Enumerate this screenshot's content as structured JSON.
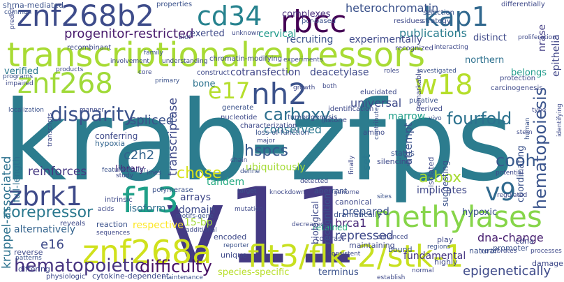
{
  "words": [
    {
      "text": "krab-zfps",
      "color": "#2c7c8e"
    },
    {
      "text": "v11",
      "color": "#443a83"
    },
    {
      "text": "transcriptionalrepressors",
      "color": "#a8db34"
    },
    {
      "text": "znf268b2",
      "color": "#3e4c8a"
    },
    {
      "text": "cd34",
      "color": "#26828e"
    },
    {
      "text": "rbcc",
      "color": "#440154"
    },
    {
      "text": "kap1",
      "color": "#31688e"
    },
    {
      "text": "znf268",
      "color": "#a0da39"
    },
    {
      "text": "nh2",
      "color": "#3b528b"
    },
    {
      "text": "w18",
      "color": "#b5de2b"
    },
    {
      "text": "e17",
      "color": "#b5de2b"
    },
    {
      "text": "flt3/flk-2/stk-1",
      "color": "#c8e020"
    },
    {
      "text": "znf268a",
      "color": "#d0e11c"
    },
    {
      "text": "methylases",
      "color": "#86d549"
    },
    {
      "text": "f13",
      "color": "#1fa088"
    },
    {
      "text": "zbrk1",
      "color": "#3e4a89"
    },
    {
      "text": "v9",
      "color": "#30698e"
    },
    {
      "text": "hematopoiesis",
      "color": "#3a548c"
    },
    {
      "text": "disparity",
      "color": "#3b528b"
    },
    {
      "text": "fourfold",
      "color": "#2c728e"
    },
    {
      "text": "carboxy",
      "color": "#2d708e"
    },
    {
      "text": "hspcs",
      "color": "#38598c"
    },
    {
      "text": "chose",
      "color": "#d8e219"
    },
    {
      "text": "corepressor",
      "color": "#2a788e"
    },
    {
      "text": "hematopoietic",
      "color": "#46337f"
    },
    {
      "text": "difficulty",
      "color": "#471063"
    },
    {
      "text": "cooh",
      "color": "#38598c"
    },
    {
      "text": "a-box",
      "color": "#a8db34"
    },
    {
      "text": "methylases",
      "color": "#86d549"
    },
    {
      "text": "progenitor-restricted",
      "color": "#481a6c"
    },
    {
      "text": "heterochromatin",
      "color": "#3b528b"
    },
    {
      "text": "publications",
      "color": "#287c8e"
    },
    {
      "text": "transcriptase",
      "color": "#3e4a89"
    },
    {
      "text": "kruppel-associated",
      "color": "#2c718e"
    },
    {
      "text": "reinforces",
      "color": "#453781"
    },
    {
      "text": "spliced",
      "color": "#3b528b"
    },
    {
      "text": "conserved",
      "color": "#2a778e"
    },
    {
      "text": "library",
      "color": "#482878"
    },
    {
      "text": "c2h2",
      "color": "#33638d"
    },
    {
      "text": "tandem",
      "color": "#25ab82"
    },
    {
      "text": "ubiquitously",
      "color": "#a5db36"
    },
    {
      "text": "universal",
      "color": "#3e4989"
    },
    {
      "text": "marrow",
      "color": "#1f9e89"
    },
    {
      "text": "attempt",
      "color": "#3b528b"
    },
    {
      "text": "epithelia",
      "color": "#404688"
    },
    {
      "text": "nrase",
      "color": "#433e85"
    },
    {
      "text": "cotransfection",
      "color": "#404688"
    },
    {
      "text": "deacetylase",
      "color": "#3e4989"
    },
    {
      "text": "prepared",
      "color": "#3b528b"
    },
    {
      "text": "implicates",
      "color": "#3f4788"
    },
    {
      "text": "repressed",
      "color": "#3e4989"
    },
    {
      "text": "dna-change",
      "color": "#481f70"
    },
    {
      "text": "brca1",
      "color": "#482878"
    },
    {
      "text": "retained",
      "color": "#29af7f"
    },
    {
      "text": "alternatively",
      "color": "#33638d"
    },
    {
      "text": "respective",
      "color": "#fde725"
    },
    {
      "text": "15-bp",
      "color": "#a2da37"
    },
    {
      "text": "e16",
      "color": "#3e4a89"
    },
    {
      "text": "full-length",
      "color": "#2d708e"
    },
    {
      "text": "isoform",
      "color": "#2e6e8e"
    },
    {
      "text": "domain",
      "color": "#3e4c8a"
    },
    {
      "text": "arrays",
      "color": "#3f4889"
    },
    {
      "text": "epigenetically",
      "color": "#3e4a89"
    },
    {
      "text": "fundamental",
      "color": "#453581"
    },
    {
      "text": "terminus",
      "color": "#3b528b"
    },
    {
      "text": "species-specific",
      "color": "#b8de29"
    },
    {
      "text": "recognition",
      "color": "#3b528b"
    },
    {
      "text": "biological",
      "color": "#3e4989"
    },
    {
      "text": "hypoxic",
      "color": "#3b528b"
    },
    {
      "text": "coordinating",
      "color": "#3b528b"
    },
    {
      "text": "set",
      "color": "#2a788e"
    },
    {
      "text": "belongs",
      "color": "#1e9b8a"
    },
    {
      "text": "carcinogenesis",
      "color": "#3e4a89"
    },
    {
      "text": "northern",
      "color": "#2d708e"
    },
    {
      "text": "recruiting",
      "color": "#3b528b"
    },
    {
      "text": "complexes",
      "color": "#472d7b"
    },
    {
      "text": "cervical",
      "color": "#1f9a8a"
    },
    {
      "text": "exerted",
      "color": "#3e4989"
    },
    {
      "text": "experimentally",
      "color": "#3e4989"
    },
    {
      "text": "bone",
      "color": "#2c728e"
    },
    {
      "text": "verified",
      "color": "#2a788e"
    },
    {
      "text": "conferring",
      "color": "#3e4989"
    },
    {
      "text": "hypoxia",
      "color": "#32648e"
    },
    {
      "text": "shrna-mediated",
      "color": "#3b528b"
    },
    {
      "text": "chromatin-modifying",
      "color": "#3e4989"
    },
    {
      "text": "pcr-based",
      "color": "#3b528b"
    },
    {
      "text": "residues",
      "color": "#3e4989"
    },
    {
      "text": "strategy",
      "color": "#3b528b"
    },
    {
      "text": "selection",
      "color": "#3b528b"
    },
    {
      "text": "recognized",
      "color": "#404688"
    },
    {
      "text": "recombinant",
      "color": "#3e4989"
    },
    {
      "text": "properties",
      "color": "#3b528b"
    },
    {
      "text": "differentially",
      "color": "#3e4989"
    },
    {
      "text": "distinct",
      "color": "#3e4989"
    },
    {
      "text": "proliferation",
      "color": "#3e4989"
    },
    {
      "text": "protection",
      "color": "#3e4989"
    },
    {
      "text": "putative",
      "color": "#3b528b"
    },
    {
      "text": "derived",
      "color": "#3e4989"
    },
    {
      "text": "elucidated",
      "color": "#3e4989"
    },
    {
      "text": "contrast",
      "color": "#3e4989"
    },
    {
      "text": "tumorigenesis",
      "color": "#3b528b"
    },
    {
      "text": "characterization",
      "color": "#3e4989"
    },
    {
      "text": "nucleotide",
      "color": "#3e4989"
    },
    {
      "text": "generate",
      "color": "#3b528b"
    },
    {
      "text": "histone",
      "color": "#3e4989"
    },
    {
      "text": "identification",
      "color": "#3e4989"
    },
    {
      "text": "experiments",
      "color": "#3e4989"
    },
    {
      "text": "loss-of-function",
      "color": "#3b528b"
    },
    {
      "text": "amino",
      "color": "#3e4989"
    },
    {
      "text": "status",
      "color": "#3b528b"
    },
    {
      "text": "silencing",
      "color": "#3e4989"
    },
    {
      "text": "isolated",
      "color": "#3e4989"
    },
    {
      "text": "suggesting",
      "color": "#3b528b"
    },
    {
      "text": "potential",
      "color": "#3e4989"
    },
    {
      "text": "regulated",
      "color": "#3e4989"
    },
    {
      "text": "aberrant",
      "color": "#3b528b"
    },
    {
      "text": "canonical",
      "color": "#3e4989"
    },
    {
      "text": "genome",
      "color": "#3e4989"
    },
    {
      "text": "dramatically",
      "color": "#3b528b"
    },
    {
      "text": "maintaining",
      "color": "#3e4989"
    },
    {
      "text": "enhanced",
      "color": "#3e4989"
    },
    {
      "text": "regions",
      "color": "#3b528b"
    },
    {
      "text": "vertebrates",
      "color": "#3e4989"
    },
    {
      "text": "play",
      "color": "#3e4989"
    },
    {
      "text": "natural",
      "color": "#3b528b"
    },
    {
      "text": "highly",
      "color": "#3e4989"
    },
    {
      "text": "cdna",
      "color": "#3e4989"
    },
    {
      "text": "promoter",
      "color": "#3b528b"
    },
    {
      "text": "processes",
      "color": "#3e4989"
    },
    {
      "text": "damage",
      "color": "#3e4989"
    },
    {
      "text": "bound",
      "color": "#3b528b"
    },
    {
      "text": "encoded",
      "color": "#3e4989"
    },
    {
      "text": "consistent",
      "color": "#3e4989"
    },
    {
      "text": "reaction",
      "color": "#3b528b"
    },
    {
      "text": "additional",
      "color": "#3e4989"
    },
    {
      "text": "sequences",
      "color": "#3e4989"
    },
    {
      "text": "polymerase",
      "color": "#3b528b"
    },
    {
      "text": "intrinsic",
      "color": "#3e4989"
    },
    {
      "text": "acids",
      "color": "#3e4989"
    },
    {
      "text": "motifs-gene",
      "color": "#3b528b"
    },
    {
      "text": "mutation",
      "color": "#3e4989"
    },
    {
      "text": "knockdown",
      "color": "#3e4989"
    },
    {
      "text": "target",
      "color": "#3b528b"
    },
    {
      "text": "decreased",
      "color": "#3e4989"
    },
    {
      "text": "unique",
      "color": "#3e4989"
    },
    {
      "text": "reporter",
      "color": "#3b528b"
    },
    {
      "text": "establish",
      "color": "#3e4989"
    },
    {
      "text": "cytokine-dependent",
      "color": "#3e4989"
    },
    {
      "text": "maintenance",
      "color": "#3b528b"
    },
    {
      "text": "physiologic",
      "color": "#3e4989"
    },
    {
      "text": "differing",
      "color": "#3e4989"
    },
    {
      "text": "patterns",
      "color": "#3b528b"
    },
    {
      "text": "reverse",
      "color": "#3e4989"
    },
    {
      "text": "reveals",
      "color": "#3e4989"
    },
    {
      "text": "feature",
      "color": "#3b528b"
    },
    {
      "text": "study",
      "color": "#3e4989"
    },
    {
      "text": "impaired",
      "color": "#3e4989"
    },
    {
      "text": "localization",
      "color": "#3b528b"
    },
    {
      "text": "manner",
      "color": "#3e4989"
    },
    {
      "text": "transcripts",
      "color": "#3e4989"
    },
    {
      "text": "programs",
      "color": "#3b528b"
    },
    {
      "text": "products",
      "color": "#3e4989"
    },
    {
      "text": "core",
      "color": "#3e4989"
    },
    {
      "text": "primary",
      "color": "#3b528b"
    },
    {
      "text": "construct",
      "color": "#3e4989"
    },
    {
      "text": "understanding",
      "color": "#3e4989"
    },
    {
      "text": "family",
      "color": "#3b528b"
    },
    {
      "text": "involvement",
      "color": "#3e4989"
    },
    {
      "text": "unknown",
      "color": "#3e4989"
    },
    {
      "text": "common",
      "color": "#3b528b"
    },
    {
      "text": "predict",
      "color": "#3e4989"
    },
    {
      "text": "roles",
      "color": "#3e4989"
    },
    {
      "text": "investigated",
      "color": "#3b528b"
    },
    {
      "text": "interacting",
      "color": "#3e4989"
    },
    {
      "text": "remarkably",
      "color": "#3e4989"
    },
    {
      "text": "vivo",
      "color": "#3b528b"
    },
    {
      "text": "growth",
      "color": "#3e4989"
    },
    {
      "text": "major",
      "color": "#3e4989"
    },
    {
      "text": "define",
      "color": "#3b528b"
    },
    {
      "text": "detected",
      "color": "#3e4989"
    },
    {
      "text": "chain",
      "color": "#3e4989"
    },
    {
      "text": "cellular",
      "color": "#3b528b"
    },
    {
      "text": "lines",
      "color": "#3e4989"
    },
    {
      "text": "type",
      "color": "#3e4989"
    },
    {
      "text": "human",
      "color": "#3b528b"
    },
    {
      "text": "normal",
      "color": "#3e4989"
    },
    {
      "text": "finally",
      "color": "#3e4989"
    },
    {
      "text": "contribute",
      "color": "#3b528b"
    },
    {
      "text": "stem",
      "color": "#3e4989"
    },
    {
      "text": "identifying",
      "color": "#3e4989"
    },
    {
      "text": "sites",
      "color": "#3b528b"
    },
    {
      "text": "blot",
      "color": "#3e4989"
    },
    {
      "text": "both",
      "color": "#3e4989"
    }
  ]
}
